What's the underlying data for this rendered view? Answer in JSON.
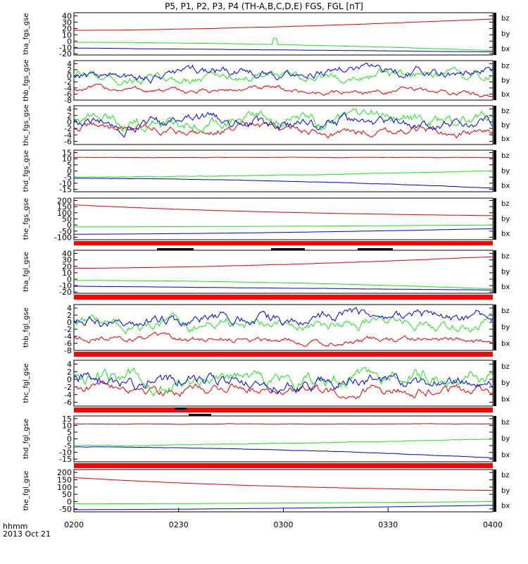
{
  "title": "P5, P1, P2, P3, P4 (TH-A,B,C,D,E) FGS, FGL [nT]",
  "colors": {
    "bx": "#0000dd",
    "by": "#22dd22",
    "bz": "#dd0000",
    "flag_red": "#ff0000",
    "flag_black": "#000000"
  },
  "x_axis": {
    "tick_labels": [
      "0200",
      "0230",
      "0300",
      "0330",
      "0400"
    ],
    "label_line1": "hhmm",
    "label_line2": "2013 Oct 21"
  },
  "chart_data": [
    {
      "type": "line",
      "ylabel": "tha_fgs_gse",
      "ylim": [
        -22,
        45
      ],
      "yticks": [
        40,
        30,
        20,
        10,
        0,
        -10,
        -20
      ],
      "series": [
        {
          "name": "bz",
          "start": 17,
          "end": 35,
          "curve": "up",
          "noise": 0.4
        },
        {
          "name": "by",
          "start": -2,
          "end": -15,
          "curve": "down",
          "noise": 0.3,
          "spike_at": 0.48,
          "spike": 10
        },
        {
          "name": "bx",
          "start": -11,
          "end": -17,
          "curve": "flat",
          "noise": 0.3
        }
      ]
    },
    {
      "type": "line",
      "ylabel": "thb_fgs_gse",
      "ylim": [
        -8,
        5
      ],
      "yticks": [
        4,
        2,
        0,
        -2,
        -4,
        -6,
        -8
      ],
      "series": [
        {
          "name": "bz",
          "start": -4.5,
          "end": -5.5,
          "curve": "wavy",
          "noise": 0.7
        },
        {
          "name": "by",
          "start": -1,
          "end": 0,
          "curve": "wavy",
          "noise": 1.2
        },
        {
          "name": "bx",
          "start": 0,
          "end": 2,
          "curve": "wavy",
          "noise": 1.2
        }
      ]
    },
    {
      "type": "line",
      "ylabel": "thc_fgs_gse",
      "ylim": [
        -7,
        5
      ],
      "yticks": [
        4,
        2,
        0,
        -2,
        -4,
        -6
      ],
      "series": [
        {
          "name": "bz",
          "start": -2,
          "end": -3,
          "curve": "wavy",
          "noise": 1.0
        },
        {
          "name": "by",
          "start": 0,
          "end": 1,
          "curve": "wavy",
          "noise": 1.5
        },
        {
          "name": "bx",
          "start": -0.5,
          "end": -0.5,
          "curve": "wavy",
          "noise": 1.3
        }
      ]
    },
    {
      "type": "line",
      "ylabel": "thd_fgs_gse",
      "ylim": [
        -17,
        17
      ],
      "yticks": [
        15,
        10,
        5,
        0,
        -5,
        -10,
        -15
      ],
      "series": [
        {
          "name": "bz",
          "start": 11,
          "end": 11,
          "curve": "flat",
          "noise": 0.4
        },
        {
          "name": "by",
          "start": -5,
          "end": 0,
          "curve": "up",
          "noise": 0.5
        },
        {
          "name": "bx",
          "start": -6,
          "end": -14,
          "curve": "down",
          "noise": 0.3
        }
      ]
    },
    {
      "type": "line",
      "ylabel": "the_fgs_gse",
      "ylim": [
        -120,
        220
      ],
      "yticks": [
        200,
        150,
        100,
        50,
        0,
        -50,
        -100
      ],
      "series": [
        {
          "name": "bz",
          "start": 165,
          "end": 55,
          "curve": "decay",
          "noise": 0.5
        },
        {
          "name": "by",
          "start": -15,
          "end": 0,
          "curve": "up",
          "noise": 0.3
        },
        {
          "name": "bx",
          "start": -75,
          "end": -30,
          "curve": "up",
          "noise": 0.3
        }
      ]
    },
    {
      "type": "line",
      "ylabel": "tha_fgl_gse",
      "ylim": [
        -22,
        45
      ],
      "yticks": [
        40,
        30,
        20,
        10,
        0,
        -10,
        -20
      ],
      "series": [
        {
          "name": "bz",
          "start": 17,
          "end": 35,
          "curve": "up",
          "noise": 0.4
        },
        {
          "name": "by",
          "start": -2,
          "end": -15,
          "curve": "down",
          "noise": 0.3
        },
        {
          "name": "bx",
          "start": -11,
          "end": -17,
          "curve": "flat",
          "noise": 0.3
        }
      ]
    },
    {
      "type": "line",
      "ylabel": "thb_fgl_gse",
      "ylim": [
        -8,
        5
      ],
      "yticks": [
        4,
        2,
        0,
        -2,
        -4,
        -6,
        -8
      ],
      "series": [
        {
          "name": "bz",
          "start": -4.5,
          "end": -5.5,
          "curve": "wavy",
          "noise": 0.7
        },
        {
          "name": "by",
          "start": -1,
          "end": 0,
          "curve": "wavy",
          "noise": 1.2
        },
        {
          "name": "bx",
          "start": 0,
          "end": 2,
          "curve": "wavy",
          "noise": 1.2
        }
      ]
    },
    {
      "type": "line",
      "ylabel": "thc_fgl_gse",
      "ylim": [
        -7,
        5
      ],
      "yticks": [
        4,
        2,
        0,
        -2,
        -4,
        -6
      ],
      "series": [
        {
          "name": "bz",
          "start": -2,
          "end": -3,
          "curve": "wavy",
          "noise": 1.0
        },
        {
          "name": "by",
          "start": 0,
          "end": 1,
          "curve": "wavy",
          "noise": 1.5
        },
        {
          "name": "bx",
          "start": -0.5,
          "end": -0.5,
          "curve": "wavy",
          "noise": 1.3
        }
      ]
    },
    {
      "type": "line",
      "ylabel": "thd_fgl_gse",
      "ylim": [
        -17,
        17
      ],
      "yticks": [
        15,
        10,
        5,
        0,
        -5,
        -10,
        -15
      ],
      "series": [
        {
          "name": "bz",
          "start": 11,
          "end": 11,
          "curve": "flat",
          "noise": 0.4
        },
        {
          "name": "by",
          "start": -5,
          "end": 0,
          "curve": "up",
          "noise": 0.5
        },
        {
          "name": "bx",
          "start": -6,
          "end": -14,
          "curve": "down",
          "noise": 0.3
        }
      ]
    },
    {
      "type": "line",
      "ylabel": "the_fgl_gse",
      "ylim": [
        -70,
        220
      ],
      "yticks": [
        200,
        150,
        100,
        50,
        0,
        -50
      ],
      "series": [
        {
          "name": "bz",
          "start": 165,
          "end": 55,
          "curve": "decay",
          "noise": 0.5
        },
        {
          "name": "by",
          "start": -15,
          "end": 0,
          "curve": "up",
          "noise": 0.3
        },
        {
          "name": "bx",
          "start": -55,
          "end": -25,
          "curve": "up",
          "noise": 0.3
        }
      ]
    }
  ],
  "legend": [
    "bz",
    "by",
    "bx"
  ]
}
